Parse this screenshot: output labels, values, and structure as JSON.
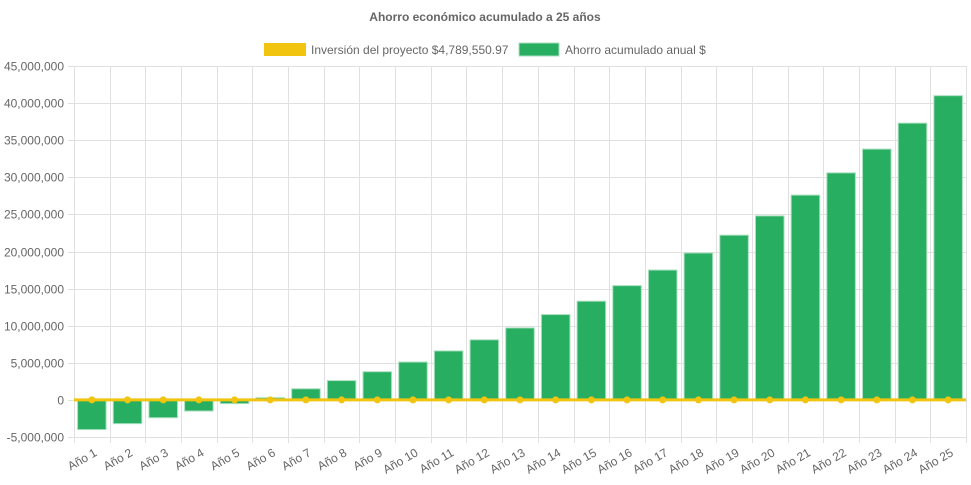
{
  "chart_data": {
    "type": "bar",
    "title": "Ahorro económico acumulado a 25 años",
    "categories": [
      "Año 1",
      "Año 2",
      "Año 3",
      "Año 4",
      "Año 5",
      "Año 6",
      "Año 7",
      "Año 8",
      "Año 9",
      "Año 10",
      "Año 11",
      "Año 12",
      "Año 13",
      "Año 14",
      "Año 15",
      "Año 16",
      "Año 17",
      "Año 18",
      "Año 19",
      "Año 20",
      "Año 21",
      "Año 22",
      "Año 23",
      "Año 24",
      "Año 25"
    ],
    "series": [
      {
        "name": "Inversión del proyecto $4,789,550.97",
        "type": "line",
        "color": "#f1c40f",
        "values": [
          0,
          0,
          0,
          0,
          0,
          0,
          0,
          0,
          0,
          0,
          0,
          0,
          0,
          0,
          0,
          0,
          0,
          0,
          0,
          0,
          0,
          0,
          0,
          0,
          0
        ]
      },
      {
        "name": "Ahorro acumulado anual $",
        "type": "bar",
        "color": "#27ae60",
        "values": [
          -4000000,
          -3200000,
          -2400000,
          -1500000,
          -500000,
          300000,
          1500000,
          2600000,
          3800000,
          5100000,
          6600000,
          8100000,
          9700000,
          11500000,
          13300000,
          15400000,
          17500000,
          19800000,
          22200000,
          24800000,
          27600000,
          30600000,
          33800000,
          37300000,
          41000000
        ]
      }
    ],
    "yticks": [
      "-5,000,000",
      "0",
      "5,000,000",
      "10,000,000",
      "15,000,000",
      "20,000,000",
      "25,000,000",
      "30,000,000",
      "35,000,000",
      "40,000,000",
      "45,000,000"
    ],
    "ylim": [
      -5000000,
      45000000
    ],
    "xlabel": "",
    "ylabel": "",
    "grid": true,
    "legend": "top"
  }
}
